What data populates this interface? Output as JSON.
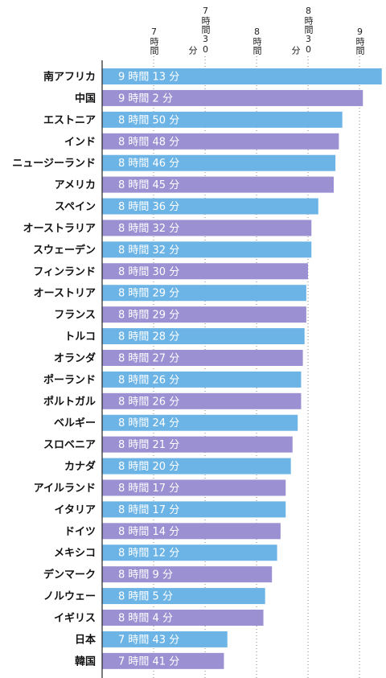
{
  "chart_data": {
    "type": "bar",
    "orientation": "horizontal",
    "categories": [
      "南アフリカ",
      "中国",
      "エストニア",
      "インド",
      "ニュージーランド",
      "アメリカ",
      "スペイン",
      "オーストラリア",
      "スウェーデン",
      "フィンランド",
      "オーストリア",
      "フランス",
      "トルコ",
      "オランダ",
      "ポーランド",
      "ポルトガル",
      "ベルギー",
      "スロベニア",
      "カナダ",
      "アイルランド",
      "イタリア",
      "ドイツ",
      "メキシコ",
      "デンマーク",
      "ノルウェー",
      "イギリス",
      "日本",
      "韓国"
    ],
    "values": [
      553,
      542,
      530,
      528,
      526,
      525,
      516,
      512,
      512,
      510,
      509,
      509,
      508,
      507,
      506,
      506,
      504,
      501,
      500,
      497,
      497,
      494,
      492,
      489,
      485,
      484,
      463,
      461
    ],
    "value_labels": [
      "9 時間 13 分",
      "9 時間 2 分",
      "8 時間 50 分",
      "8 時間 48 分",
      "8 時間 46 分",
      "8 時間 45 分",
      "8 時間 36 分",
      "8 時間 32 分",
      "8 時間 32 分",
      "8 時間 30 分",
      "8 時間 29 分",
      "8 時間 29 分",
      "8 時間 28 分",
      "8 時間 27 分",
      "8 時間 26 分",
      "8 時間 26 分",
      "8 時間 24 分",
      "8 時間 21 分",
      "8 時間 20 分",
      "8 時間 17 分",
      "8 時間 17 分",
      "8 時間 14 分",
      "8 時間 12 分",
      "8 時間 9 分",
      "8 時間 5 分",
      "8 時間 4 分",
      "7 時間 43 分",
      "7 時間 41 分"
    ],
    "colors": [
      "#6cb4e6",
      "#9a90d2"
    ],
    "xlim": [
      390,
      555
    ],
    "xticks": [
      {
        "value": 420,
        "label": "7時間"
      },
      {
        "value": 450,
        "label": "7時間30分"
      },
      {
        "value": 480,
        "label": "8時間"
      },
      {
        "value": 510,
        "label": "8時間30分"
      },
      {
        "value": 540,
        "label": "9時間"
      }
    ],
    "grid": true
  }
}
